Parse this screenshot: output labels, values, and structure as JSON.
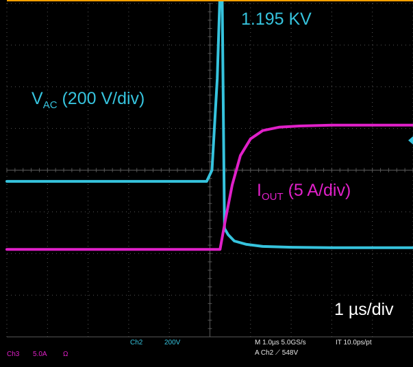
{
  "chart_data": {
    "type": "line",
    "title": "",
    "xlabel": "",
    "ylabel": "",
    "x_unit": "µs",
    "xlim": [
      0,
      10
    ],
    "ylim_div": [
      -4,
      4
    ],
    "grid": true,
    "annotations": {
      "peak": "1.195 KV",
      "vac_pre": "V",
      "vac_sub": "AC",
      "vac_post": " (200 V/div)",
      "iout_pre": "I",
      "iout_sub": "OUT",
      "iout_post": " (5 A/div)",
      "time_div": "1 µs/div"
    },
    "series": [
      {
        "name": "",
        "channel": "Ch2",
        "quantity": "voltage",
        "color": "#36c3dd",
        "x": [
          0,
          4.92,
          5.05,
          5.18,
          5.25,
          5.3,
          5.36,
          5.45,
          5.6,
          5.9,
          6.3,
          7,
          8,
          10
        ],
        "y": [
          -0.27,
          -0.27,
          0,
          2.2,
          4.3,
          4.3,
          -1.4,
          -1.55,
          -1.7,
          -1.78,
          -1.83,
          -1.85,
          -1.86,
          -1.86
        ]
      },
      {
        "name": "",
        "channel": "Ch3",
        "quantity": "current",
        "color": "#e020c8",
        "x": [
          0,
          5.25,
          5.38,
          5.55,
          5.75,
          6.0,
          6.3,
          6.7,
          7.2,
          8,
          10
        ],
        "y": [
          -1.9,
          -1.9,
          -1.2,
          -0.35,
          0.35,
          0.75,
          0.95,
          1.03,
          1.06,
          1.08,
          1.08
        ]
      }
    ]
  },
  "status": {
    "ch3": "Ch3",
    "ch3_scale": "5.0A",
    "ch3_coupling": "Ω",
    "ch2": "Ch2",
    "ch2_scale": "200V",
    "timebase": "M 1.0µs 5.0GS/s",
    "trigger": "A Ch2 ⟋ 548V",
    "record": "IT 10.0ps/pt"
  },
  "colors": {
    "screen_bg": "#000000",
    "grid": "#5a5a5a",
    "trigger_marker": "#ffa000",
    "ch3_text": "#e020c8",
    "ch2_text": "#36c3dd",
    "status_text": "#e6e6e6"
  }
}
